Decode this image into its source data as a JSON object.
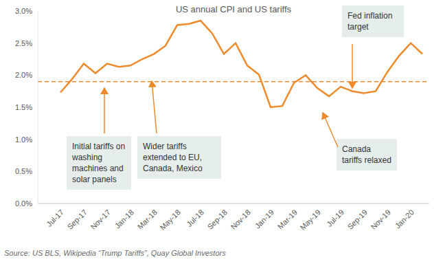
{
  "chart_data": {
    "type": "line",
    "title": "US annual CPI and US tariffs",
    "categories": [
      "Jul-17",
      null,
      "Sep-17",
      null,
      "Nov-17",
      null,
      "Jan-18",
      null,
      "Mar-18",
      null,
      "May-18",
      null,
      "Jul-18",
      null,
      "Sep-18",
      null,
      "Nov-18",
      null,
      "Jan-19",
      null,
      "Mar-19",
      null,
      "May-19",
      null,
      "Jul-19",
      null,
      "Sep-19",
      null,
      "Nov-19",
      null,
      "Jan-20",
      null
    ],
    "values": [
      1.73,
      1.94,
      2.18,
      2.03,
      2.18,
      2.13,
      2.15,
      2.25,
      2.33,
      2.46,
      2.78,
      2.8,
      2.85,
      2.65,
      2.33,
      2.5,
      2.15,
      2.01,
      1.5,
      1.52,
      1.88,
      2.0,
      1.8,
      1.67,
      1.82,
      1.75,
      1.72,
      1.75,
      2.05,
      2.3,
      2.5,
      2.33
    ],
    "color": "#ee8a2a",
    "line_style": "solid",
    "ylim": [
      0,
      3
    ],
    "yticks": [
      {
        "value": 0,
        "label": "0.0%"
      },
      {
        "value": 0.5,
        "label": "0.5%"
      },
      {
        "value": 1,
        "label": "1.0%"
      },
      {
        "value": 1.5,
        "label": "1.5%"
      },
      {
        "value": 2,
        "label": "2.0%"
      },
      {
        "value": 2.5,
        "label": "2.5%"
      },
      {
        "value": 3,
        "label": "3.0%"
      }
    ],
    "grid": false,
    "reference_lines": [
      {
        "value": 1.9,
        "line_style": "dashed"
      }
    ],
    "annotations": [
      "Initial tariffs on washing machines and solar panels",
      "Wider tariffs extended to EU, Canada, Mexico",
      "Fed inflation target",
      "Canada tariffs relaxed"
    ],
    "source": "Source: US BLS, Wikipedia “Trump Tariffs”, Quay Global Investors"
  }
}
